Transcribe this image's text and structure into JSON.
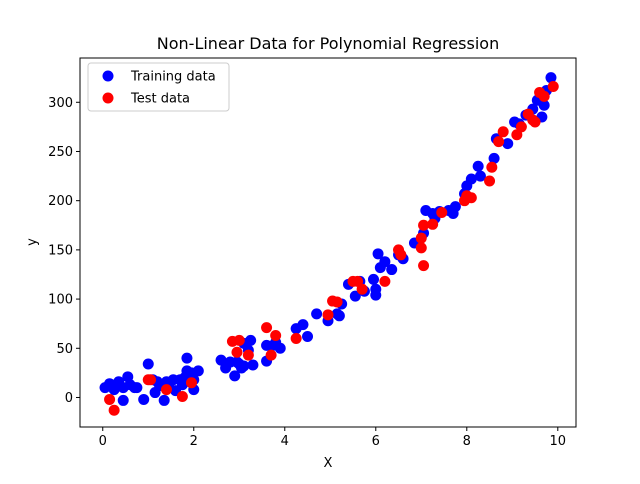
{
  "chart_data": {
    "type": "scatter",
    "title": "Non-Linear Data for Polynomial Regression",
    "xlabel": "X",
    "ylabel": "y",
    "xlim": [
      -0.5,
      10.4
    ],
    "ylim": [
      -30,
      345
    ],
    "xticks": [
      "0",
      "2",
      "4",
      "6",
      "8",
      "10"
    ],
    "yticks": [
      "0",
      "50",
      "100",
      "150",
      "200",
      "250",
      "300"
    ],
    "legend": {
      "location": "upper-left",
      "entries": [
        "Training data",
        "Test data"
      ]
    },
    "grid": false,
    "series": [
      {
        "name": "Training data",
        "color": "#0000ff",
        "points": [
          [
            0.05,
            10
          ],
          [
            0.15,
            14
          ],
          [
            0.25,
            8
          ],
          [
            0.35,
            16
          ],
          [
            0.45,
            -3
          ],
          [
            0.45,
            10
          ],
          [
            0.55,
            21
          ],
          [
            0.6,
            13
          ],
          [
            0.7,
            10
          ],
          [
            0.75,
            10
          ],
          [
            0.9,
            -2
          ],
          [
            1.0,
            34
          ],
          [
            1.1,
            18
          ],
          [
            1.15,
            5
          ],
          [
            1.2,
            16
          ],
          [
            1.25,
            12
          ],
          [
            1.35,
            -3
          ],
          [
            1.4,
            16
          ],
          [
            1.45,
            12
          ],
          [
            1.55,
            18
          ],
          [
            1.6,
            7
          ],
          [
            1.7,
            18
          ],
          [
            1.75,
            13
          ],
          [
            1.8,
            20
          ],
          [
            1.85,
            27
          ],
          [
            1.85,
            40
          ],
          [
            1.95,
            25
          ],
          [
            2.0,
            8
          ],
          [
            2.0,
            18
          ],
          [
            2.1,
            27
          ],
          [
            2.6,
            38
          ],
          [
            2.7,
            30
          ],
          [
            2.8,
            36
          ],
          [
            2.9,
            22
          ],
          [
            2.95,
            36
          ],
          [
            3.0,
            34
          ],
          [
            3.05,
            30
          ],
          [
            3.1,
            32
          ],
          [
            3.1,
            55
          ],
          [
            3.2,
            48
          ],
          [
            3.25,
            58
          ],
          [
            3.3,
            33
          ],
          [
            3.6,
            37
          ],
          [
            3.6,
            53
          ],
          [
            3.7,
            52
          ],
          [
            3.8,
            56
          ],
          [
            3.9,
            50
          ],
          [
            4.25,
            70
          ],
          [
            4.4,
            74
          ],
          [
            4.5,
            62
          ],
          [
            4.7,
            85
          ],
          [
            4.95,
            78
          ],
          [
            5.15,
            85
          ],
          [
            5.2,
            83
          ],
          [
            5.25,
            95
          ],
          [
            5.4,
            115
          ],
          [
            5.55,
            103
          ],
          [
            5.65,
            118
          ],
          [
            5.75,
            108
          ],
          [
            5.95,
            120
          ],
          [
            6.0,
            104
          ],
          [
            6.0,
            110
          ],
          [
            6.05,
            146
          ],
          [
            6.1,
            132
          ],
          [
            6.2,
            138
          ],
          [
            6.35,
            130
          ],
          [
            6.5,
            145
          ],
          [
            6.6,
            141
          ],
          [
            6.85,
            157
          ],
          [
            7.05,
            167
          ],
          [
            7.1,
            190
          ],
          [
            7.25,
            187
          ],
          [
            7.3,
            182
          ],
          [
            7.4,
            189
          ],
          [
            7.6,
            190
          ],
          [
            7.7,
            187
          ],
          [
            7.75,
            194
          ],
          [
            7.95,
            207
          ],
          [
            8.0,
            215
          ],
          [
            8.1,
            222
          ],
          [
            8.25,
            235
          ],
          [
            8.3,
            225
          ],
          [
            8.6,
            243
          ],
          [
            8.65,
            263
          ],
          [
            8.9,
            258
          ],
          [
            9.05,
            280
          ],
          [
            9.15,
            278
          ],
          [
            9.3,
            287
          ],
          [
            9.45,
            293
          ],
          [
            9.55,
            302
          ],
          [
            9.65,
            285
          ],
          [
            9.7,
            297
          ],
          [
            9.75,
            312
          ],
          [
            9.85,
            325
          ]
        ]
      },
      {
        "name": "Test data",
        "color": "#ff0000",
        "points": [
          [
            0.15,
            -2
          ],
          [
            0.25,
            -13
          ],
          [
            1.0,
            18
          ],
          [
            1.05,
            18
          ],
          [
            1.4,
            8
          ],
          [
            1.75,
            1
          ],
          [
            1.95,
            15
          ],
          [
            2.85,
            57
          ],
          [
            2.95,
            46
          ],
          [
            3.0,
            58
          ],
          [
            3.2,
            43
          ],
          [
            3.6,
            71
          ],
          [
            3.7,
            43
          ],
          [
            3.8,
            63
          ],
          [
            4.25,
            60
          ],
          [
            4.95,
            84
          ],
          [
            5.05,
            98
          ],
          [
            5.15,
            97
          ],
          [
            5.5,
            118
          ],
          [
            5.6,
            118
          ],
          [
            5.7,
            110
          ],
          [
            6.2,
            118
          ],
          [
            6.5,
            150
          ],
          [
            6.55,
            145
          ],
          [
            7.0,
            162
          ],
          [
            7.0,
            152
          ],
          [
            7.05,
            134
          ],
          [
            7.05,
            175
          ],
          [
            7.25,
            176
          ],
          [
            7.45,
            188
          ],
          [
            7.95,
            200
          ],
          [
            8.0,
            205
          ],
          [
            8.1,
            203
          ],
          [
            8.5,
            220
          ],
          [
            8.55,
            234
          ],
          [
            8.7,
            260
          ],
          [
            8.8,
            270
          ],
          [
            9.1,
            267
          ],
          [
            9.2,
            275
          ],
          [
            9.35,
            288
          ],
          [
            9.45,
            282
          ],
          [
            9.5,
            280
          ],
          [
            9.6,
            310
          ],
          [
            9.7,
            306
          ],
          [
            9.9,
            316
          ]
        ]
      }
    ]
  }
}
